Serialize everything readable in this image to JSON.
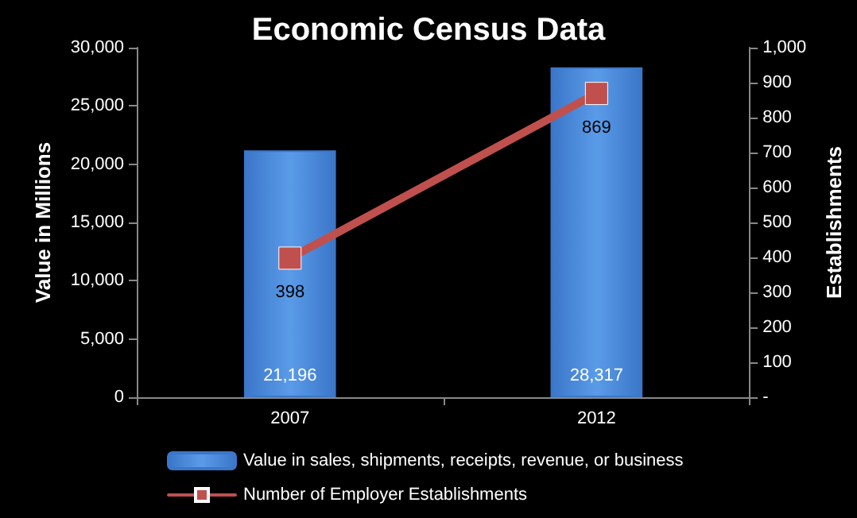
{
  "chart_data": {
    "type": "bar",
    "title": "Economic Census Data",
    "ylabel": "Value in Millions",
    "y2label": "Establishments",
    "categories": [
      "2007",
      "2012"
    ],
    "series": [
      {
        "name": "Value in sales, shipments, receipts, revenue, or business",
        "color": "#3b76c9",
        "values": [
          21196,
          28317
        ],
        "value_labels": [
          "21,196",
          "28,317"
        ]
      },
      {
        "name": "Number of Employer Establishments",
        "type": "line",
        "axis": "y2",
        "color": "#c0504d",
        "marker": "square",
        "values": [
          398,
          869
        ],
        "value_labels": [
          "398",
          "869"
        ]
      }
    ],
    "ylim": [
      0,
      30000
    ],
    "yticks": [
      0,
      {
        "value": 5000,
        "label": "5,000"
      },
      {
        "value": 10000,
        "label": "10,000"
      },
      {
        "value": 15000,
        "label": "15,000"
      },
      {
        "value": 20000,
        "label": "20,000"
      },
      {
        "value": 25000,
        "label": "25,000"
      },
      {
        "value": 30000,
        "label": "30,000"
      }
    ],
    "y2lim": [
      0,
      1000
    ],
    "y2ticks": [
      {
        "value": 0,
        "label": "-"
      },
      100,
      200,
      300,
      400,
      500,
      600,
      700,
      800,
      900,
      {
        "value": 1000,
        "label": "1,000"
      }
    ],
    "grid": false,
    "legend": "bottom"
  }
}
